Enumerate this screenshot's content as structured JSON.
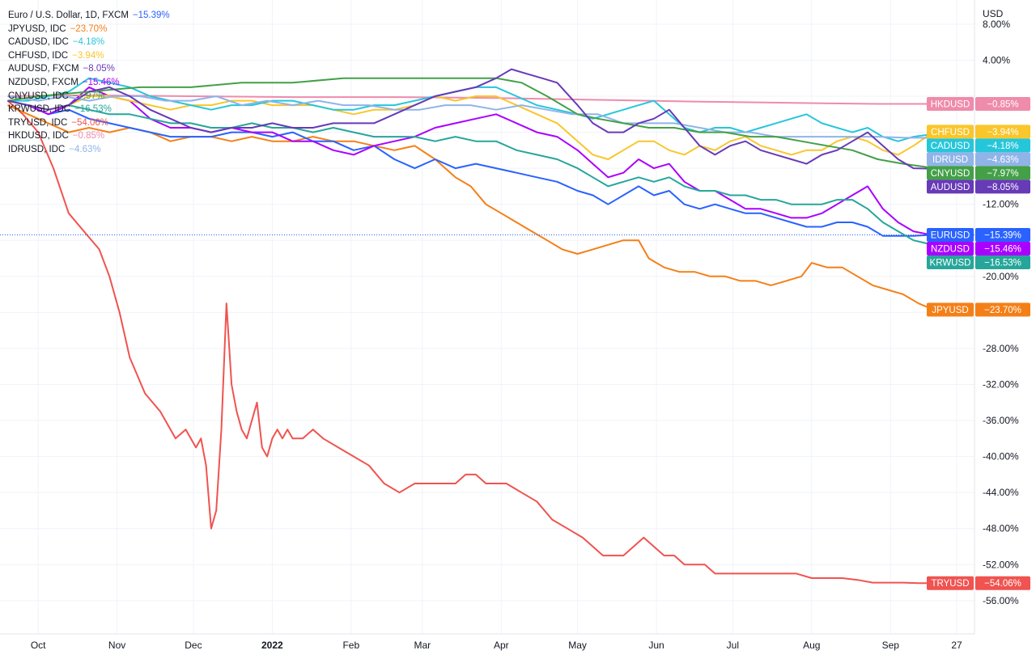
{
  "chart_data": {
    "type": "line",
    "currency_label": "USD",
    "y_unit": "%",
    "ylim": [
      -60,
      8.5
    ],
    "grid": true,
    "y_ticks": [
      "8.00%",
      "4.00%",
      "-12.00%",
      "-20.00%",
      "-28.00%",
      "-32.00%",
      "-36.00%",
      "-40.00%",
      "-44.00%",
      "-48.00%",
      "-52.00%",
      "-56.00%"
    ],
    "y_tick_values": [
      8,
      4,
      -12,
      -20,
      -28,
      -32,
      -36,
      -40,
      -44,
      -48,
      -52,
      -56
    ],
    "grid_values": [
      8,
      4,
      0,
      -4,
      -8,
      -12,
      -16,
      -20,
      -24,
      -28,
      -32,
      -36,
      -40,
      -44,
      -48,
      -52,
      -56
    ],
    "x_tick_labels": [
      "Oct",
      "Nov",
      "Dec",
      "2022",
      "Feb",
      "Mar",
      "Apr",
      "May",
      "Jun",
      "Jul",
      "Aug",
      "Sep",
      "27"
    ],
    "x_tick_values": [
      0,
      31,
      61,
      92,
      123,
      151,
      182,
      212,
      243,
      273,
      304,
      335,
      361
    ],
    "x_range": [
      -15,
      368
    ],
    "x_note": "days since Oct 1 2021",
    "series": [
      {
        "name": "TRYUSD",
        "legend": "TRYUSD, IDC",
        "last": "−54.06%",
        "last_value": -54.06,
        "color": "#f05350",
        "x": [
          -12,
          -6,
          0,
          6,
          12,
          18,
          24,
          28,
          32,
          36,
          42,
          48,
          54,
          58,
          62,
          64,
          66,
          68,
          70,
          72,
          74,
          76,
          78,
          80,
          82,
          84,
          86,
          88,
          90,
          92,
          94,
          96,
          98,
          100,
          104,
          108,
          112,
          118,
          124,
          130,
          136,
          142,
          148,
          152,
          156,
          160,
          164,
          168,
          172,
          176,
          180,
          184,
          190,
          196,
          202,
          208,
          214,
          218,
          222,
          226,
          230,
          234,
          238,
          242,
          246,
          250,
          254,
          258,
          262,
          266,
          270,
          274,
          280,
          286,
          292,
          298,
          304,
          310,
          316,
          322,
          328,
          334,
          340,
          346,
          352
        ],
        "y": [
          -0.5,
          -2,
          -4,
          -8,
          -13,
          -15,
          -17,
          -20,
          -24,
          -29,
          -33,
          -35,
          -38,
          -37,
          -39,
          -38,
          -41,
          -48,
          -46,
          -37,
          -23,
          -32,
          -35,
          -37,
          -38,
          -36,
          -34,
          -39,
          -40,
          -38,
          -37,
          -38,
          -37,
          -38,
          -38,
          -37,
          -38,
          -39,
          -40,
          -41,
          -43,
          -44,
          -43,
          -43,
          -43,
          -43,
          -43,
          -42,
          -42,
          -43,
          -43,
          -43,
          -44,
          -45,
          -47,
          -48,
          -49,
          -50,
          -51,
          -51,
          -51,
          -50,
          -49,
          -50,
          -51,
          -51,
          -52,
          -52,
          -52,
          -53,
          -53,
          -53,
          -53,
          -53,
          -53,
          -53,
          -53.5,
          -53.5,
          -53.5,
          -53.7,
          -54,
          -54,
          -54,
          -54.06,
          -54.06
        ]
      },
      {
        "name": "JPYUSD",
        "legend": "JPYUSD, IDC",
        "last": "−23.70%",
        "last_value": -23.7,
        "color": "#f57f17",
        "x": [
          -12,
          -4,
          4,
          12,
          20,
          28,
          36,
          44,
          52,
          60,
          68,
          76,
          84,
          92,
          100,
          108,
          116,
          124,
          132,
          140,
          148,
          156,
          164,
          170,
          176,
          182,
          188,
          194,
          200,
          206,
          212,
          218,
          224,
          230,
          236,
          240,
          246,
          252,
          258,
          264,
          270,
          276,
          282,
          288,
          294,
          300,
          304,
          310,
          316,
          322,
          328,
          334,
          340,
          346,
          352
        ],
        "y": [
          -1,
          -2,
          -3,
          -4,
          -3.5,
          -4,
          -3.5,
          -4,
          -5,
          -4.5,
          -4.5,
          -5,
          -4.5,
          -5,
          -5,
          -4.5,
          -5,
          -5,
          -5.5,
          -6,
          -5.5,
          -7,
          -9,
          -10,
          -12,
          -13,
          -14,
          -15,
          -16,
          -17,
          -17.5,
          -17,
          -16.5,
          -16,
          -16,
          -18,
          -19,
          -19.5,
          -19.5,
          -20,
          -20,
          -20.5,
          -20.5,
          -21,
          -20.5,
          -20,
          -18.5,
          -19,
          -19,
          -20,
          -21,
          -21.5,
          -22,
          -23,
          -23.7
        ]
      },
      {
        "name": "EURUSD",
        "legend": "Euro / U.S. Dollar, 1D, FXCM",
        "last": "−15.39%",
        "last_value": -15.39,
        "color": "#2962ff",
        "x": [
          -12,
          -4,
          4,
          12,
          20,
          28,
          36,
          44,
          52,
          60,
          68,
          76,
          84,
          92,
          100,
          108,
          116,
          124,
          132,
          140,
          148,
          156,
          164,
          172,
          180,
          188,
          196,
          204,
          212,
          218,
          224,
          230,
          236,
          242,
          248,
          254,
          260,
          266,
          272,
          278,
          284,
          290,
          296,
          302,
          308,
          314,
          320,
          326,
          332,
          338,
          344,
          352
        ],
        "y": [
          -0.5,
          -1,
          -2,
          -1.5,
          -2.5,
          -3,
          -3.5,
          -4,
          -4.5,
          -4.5,
          -4.5,
          -4,
          -4,
          -4.5,
          -4,
          -5,
          -5,
          -6,
          -5.5,
          -7,
          -8,
          -7,
          -8,
          -7.5,
          -8,
          -8.5,
          -9,
          -9.5,
          -10.5,
          -11,
          -12,
          -11,
          -10,
          -11,
          -10.5,
          -12,
          -12.5,
          -12,
          -12.5,
          -13,
          -13,
          -13.5,
          -14,
          -14.5,
          -14.5,
          -14,
          -14,
          -14.5,
          -15.5,
          -15.5,
          -15.5,
          -15.39
        ]
      },
      {
        "name": "NZDUSD",
        "legend": "NZDUSD, FXCM",
        "last": "−15.46%",
        "last_value": -15.46,
        "color": "#aa00ff",
        "x": [
          -12,
          -4,
          4,
          12,
          20,
          28,
          36,
          44,
          52,
          60,
          68,
          76,
          84,
          92,
          100,
          108,
          116,
          124,
          132,
          140,
          148,
          156,
          164,
          172,
          180,
          188,
          196,
          204,
          212,
          218,
          224,
          230,
          236,
          242,
          248,
          254,
          260,
          266,
          272,
          278,
          284,
          290,
          296,
          302,
          308,
          314,
          320,
          326,
          332,
          338,
          344,
          352
        ],
        "y": [
          -0.5,
          -1,
          -2,
          -1,
          1,
          0,
          -0.5,
          -2.5,
          -3.5,
          -3.5,
          -4,
          -3.5,
          -4,
          -4,
          -5,
          -5,
          -6,
          -6.5,
          -5.5,
          -5,
          -4.5,
          -3.5,
          -3,
          -2.5,
          -2,
          -3,
          -4,
          -4.5,
          -6,
          -7.5,
          -9,
          -8.5,
          -7,
          -8,
          -7.5,
          -9.5,
          -10.5,
          -10.5,
          -11.5,
          -12.5,
          -12.5,
          -13,
          -13.5,
          -13.5,
          -13,
          -12,
          -11,
          -10,
          -12.5,
          -14,
          -15,
          -15.46
        ]
      },
      {
        "name": "KRWUSD",
        "legend": "KRWUSD, IDC",
        "last": "−16.53%",
        "last_value": -16.53,
        "color": "#26a69a",
        "x": [
          -12,
          -4,
          4,
          12,
          20,
          28,
          36,
          44,
          52,
          60,
          68,
          76,
          84,
          92,
          100,
          108,
          116,
          124,
          132,
          140,
          148,
          156,
          164,
          172,
          180,
          188,
          196,
          204,
          212,
          218,
          224,
          230,
          236,
          242,
          248,
          254,
          260,
          266,
          272,
          278,
          284,
          290,
          296,
          302,
          308,
          314,
          320,
          326,
          332,
          338,
          344,
          352
        ],
        "y": [
          -0.5,
          -1,
          -1.5,
          -1,
          -1.5,
          -2,
          -2,
          -2.5,
          -3,
          -3,
          -3.5,
          -3.5,
          -3,
          -3.5,
          -3.5,
          -4,
          -3.5,
          -4,
          -4.5,
          -4.5,
          -4.5,
          -5,
          -4.5,
          -5,
          -5,
          -6,
          -6.5,
          -7,
          -8,
          -9,
          -10,
          -9.5,
          -9,
          -9.5,
          -9,
          -10,
          -10.5,
          -10.5,
          -11,
          -11,
          -11.5,
          -11.5,
          -12,
          -12,
          -12,
          -11.5,
          -11.5,
          -12.5,
          -14,
          -15,
          -16,
          -16.53
        ]
      },
      {
        "name": "HKDUSD",
        "legend": "HKDUSD, IDC",
        "last": "−0.85%",
        "last_value": -0.85,
        "color": "#ef8bab",
        "x": [
          -12,
          20,
          60,
          100,
          140,
          180,
          220,
          260,
          300,
          330,
          352
        ],
        "y": [
          0,
          0.1,
          0,
          -0.1,
          -0.1,
          -0.2,
          -0.4,
          -0.6,
          -0.75,
          -0.85,
          -0.85
        ]
      },
      {
        "name": "CHFUSD",
        "legend": "CHFUSD, IDC",
        "last": "−3.94%",
        "last_value": -3.94,
        "color": "#f9c62b",
        "x": [
          -12,
          -4,
          4,
          12,
          20,
          28,
          36,
          44,
          52,
          60,
          68,
          76,
          84,
          92,
          100,
          108,
          116,
          124,
          132,
          140,
          148,
          156,
          164,
          172,
          180,
          188,
          196,
          204,
          212,
          218,
          224,
          230,
          236,
          242,
          248,
          254,
          260,
          266,
          272,
          278,
          284,
          290,
          296,
          302,
          308,
          314,
          320,
          326,
          332,
          338,
          344,
          352
        ],
        "y": [
          -0.5,
          -1,
          -1.5,
          -1,
          0,
          0,
          -0.5,
          -1,
          -1.5,
          -1,
          -1,
          -0.5,
          -0.5,
          -1,
          -1,
          -1,
          -1.5,
          -2,
          -1.5,
          -1.5,
          -1,
          0,
          -0.5,
          0,
          0,
          -1,
          -2,
          -3,
          -5,
          -6.5,
          -7,
          -6,
          -5,
          -5,
          -6,
          -6.5,
          -5.5,
          -6,
          -5,
          -4.5,
          -5.5,
          -6,
          -6.5,
          -6,
          -6,
          -5,
          -4.5,
          -5,
          -6,
          -6.5,
          -5.5,
          -3.94
        ]
      },
      {
        "name": "CADUSD",
        "legend": "CADUSD, IDC",
        "last": "−4.18%",
        "last_value": -4.18,
        "color": "#26c6da",
        "x": [
          -12,
          -4,
          4,
          12,
          20,
          28,
          36,
          44,
          52,
          60,
          68,
          76,
          84,
          92,
          100,
          108,
          116,
          124,
          132,
          140,
          148,
          156,
          164,
          172,
          180,
          188,
          196,
          204,
          212,
          218,
          224,
          230,
          236,
          242,
          248,
          254,
          260,
          266,
          272,
          278,
          284,
          290,
          296,
          302,
          308,
          314,
          320,
          326,
          332,
          338,
          344,
          352
        ],
        "y": [
          -0.5,
          -0.5,
          0,
          0.5,
          2,
          1.5,
          1,
          0,
          -0.5,
          -1,
          -1.5,
          -1,
          -1,
          -0.5,
          -0.5,
          -1,
          -1.5,
          -1.5,
          -1,
          -1,
          -0.5,
          0,
          0.5,
          1,
          1,
          0,
          -1,
          -1.5,
          -2,
          -2.5,
          -2,
          -1.5,
          -1,
          -0.5,
          -2,
          -3.5,
          -4,
          -3.5,
          -3.5,
          -4,
          -3.5,
          -3,
          -2.5,
          -2,
          -3,
          -3.5,
          -4,
          -3.5,
          -4.5,
          -5,
          -4.5,
          -4.18
        ]
      },
      {
        "name": "IDRUSD",
        "legend": "IDRUSD, IDC",
        "last": "−4.63%",
        "last_value": -4.63,
        "color": "#90b4e8",
        "x": [
          -12,
          0,
          10,
          20,
          30,
          40,
          50,
          60,
          70,
          80,
          90,
          100,
          110,
          120,
          130,
          140,
          150,
          160,
          170,
          180,
          190,
          200,
          210,
          220,
          230,
          240,
          250,
          260,
          270,
          280,
          290,
          300,
          310,
          320,
          330,
          340,
          352
        ],
        "y": [
          0,
          -0.5,
          0,
          -0.5,
          0,
          0,
          -0.5,
          -0.5,
          0,
          -1,
          -0.5,
          -1,
          -0.5,
          -1,
          -1,
          -1.5,
          -1.5,
          -1,
          -1,
          -1.5,
          -1,
          -1.5,
          -2,
          -2,
          -3,
          -3,
          -3,
          -3.5,
          -4,
          -4,
          -4.5,
          -4.5,
          -4.5,
          -4.5,
          -4.5,
          -4.6,
          -4.63
        ]
      },
      {
        "name": "CNYUSD",
        "legend": "CNYUSD, IDC",
        "last": "−7.97%",
        "last_value": -7.97,
        "color": "#43a047",
        "x": [
          -12,
          0,
          20,
          40,
          60,
          80,
          100,
          120,
          140,
          160,
          180,
          190,
          200,
          206,
          212,
          220,
          230,
          240,
          250,
          260,
          270,
          280,
          290,
          300,
          310,
          320,
          330,
          340,
          352
        ],
        "y": [
          -0.5,
          0,
          0.5,
          1,
          1,
          1.5,
          1.5,
          2,
          2,
          2,
          2,
          1.5,
          0,
          -1,
          -2,
          -2.5,
          -3,
          -3.5,
          -3.5,
          -4,
          -4,
          -4.5,
          -4.5,
          -5,
          -5.5,
          -6,
          -7,
          -7.5,
          -7.97
        ]
      },
      {
        "name": "AUDUSD",
        "legend": "AUDUSD, FXCM",
        "last": "−8.05%",
        "last_value": -8.05,
        "color": "#673ab7",
        "x": [
          -12,
          -4,
          4,
          12,
          20,
          28,
          36,
          44,
          52,
          60,
          68,
          76,
          84,
          92,
          100,
          108,
          116,
          124,
          132,
          140,
          148,
          156,
          164,
          172,
          180,
          186,
          192,
          198,
          204,
          212,
          218,
          224,
          230,
          236,
          242,
          248,
          254,
          260,
          266,
          272,
          278,
          284,
          290,
          296,
          302,
          308,
          314,
          320,
          326,
          332,
          338,
          344,
          352
        ],
        "y": [
          -0.5,
          -1,
          -1.5,
          -1,
          0.5,
          1,
          0,
          -1.5,
          -2.5,
          -3.5,
          -4,
          -3.5,
          -3.5,
          -3,
          -3.5,
          -3.5,
          -3,
          -3,
          -3,
          -2,
          -1,
          0,
          0.5,
          1,
          2,
          3,
          2.5,
          2,
          1.5,
          -1,
          -3,
          -4,
          -4,
          -3,
          -2.5,
          -1.5,
          -3.5,
          -5.5,
          -6.5,
          -5.5,
          -5,
          -6,
          -6.5,
          -7,
          -7.5,
          -6.5,
          -6,
          -5,
          -4,
          -5.5,
          -7,
          -8,
          -8.05
        ]
      }
    ]
  }
}
